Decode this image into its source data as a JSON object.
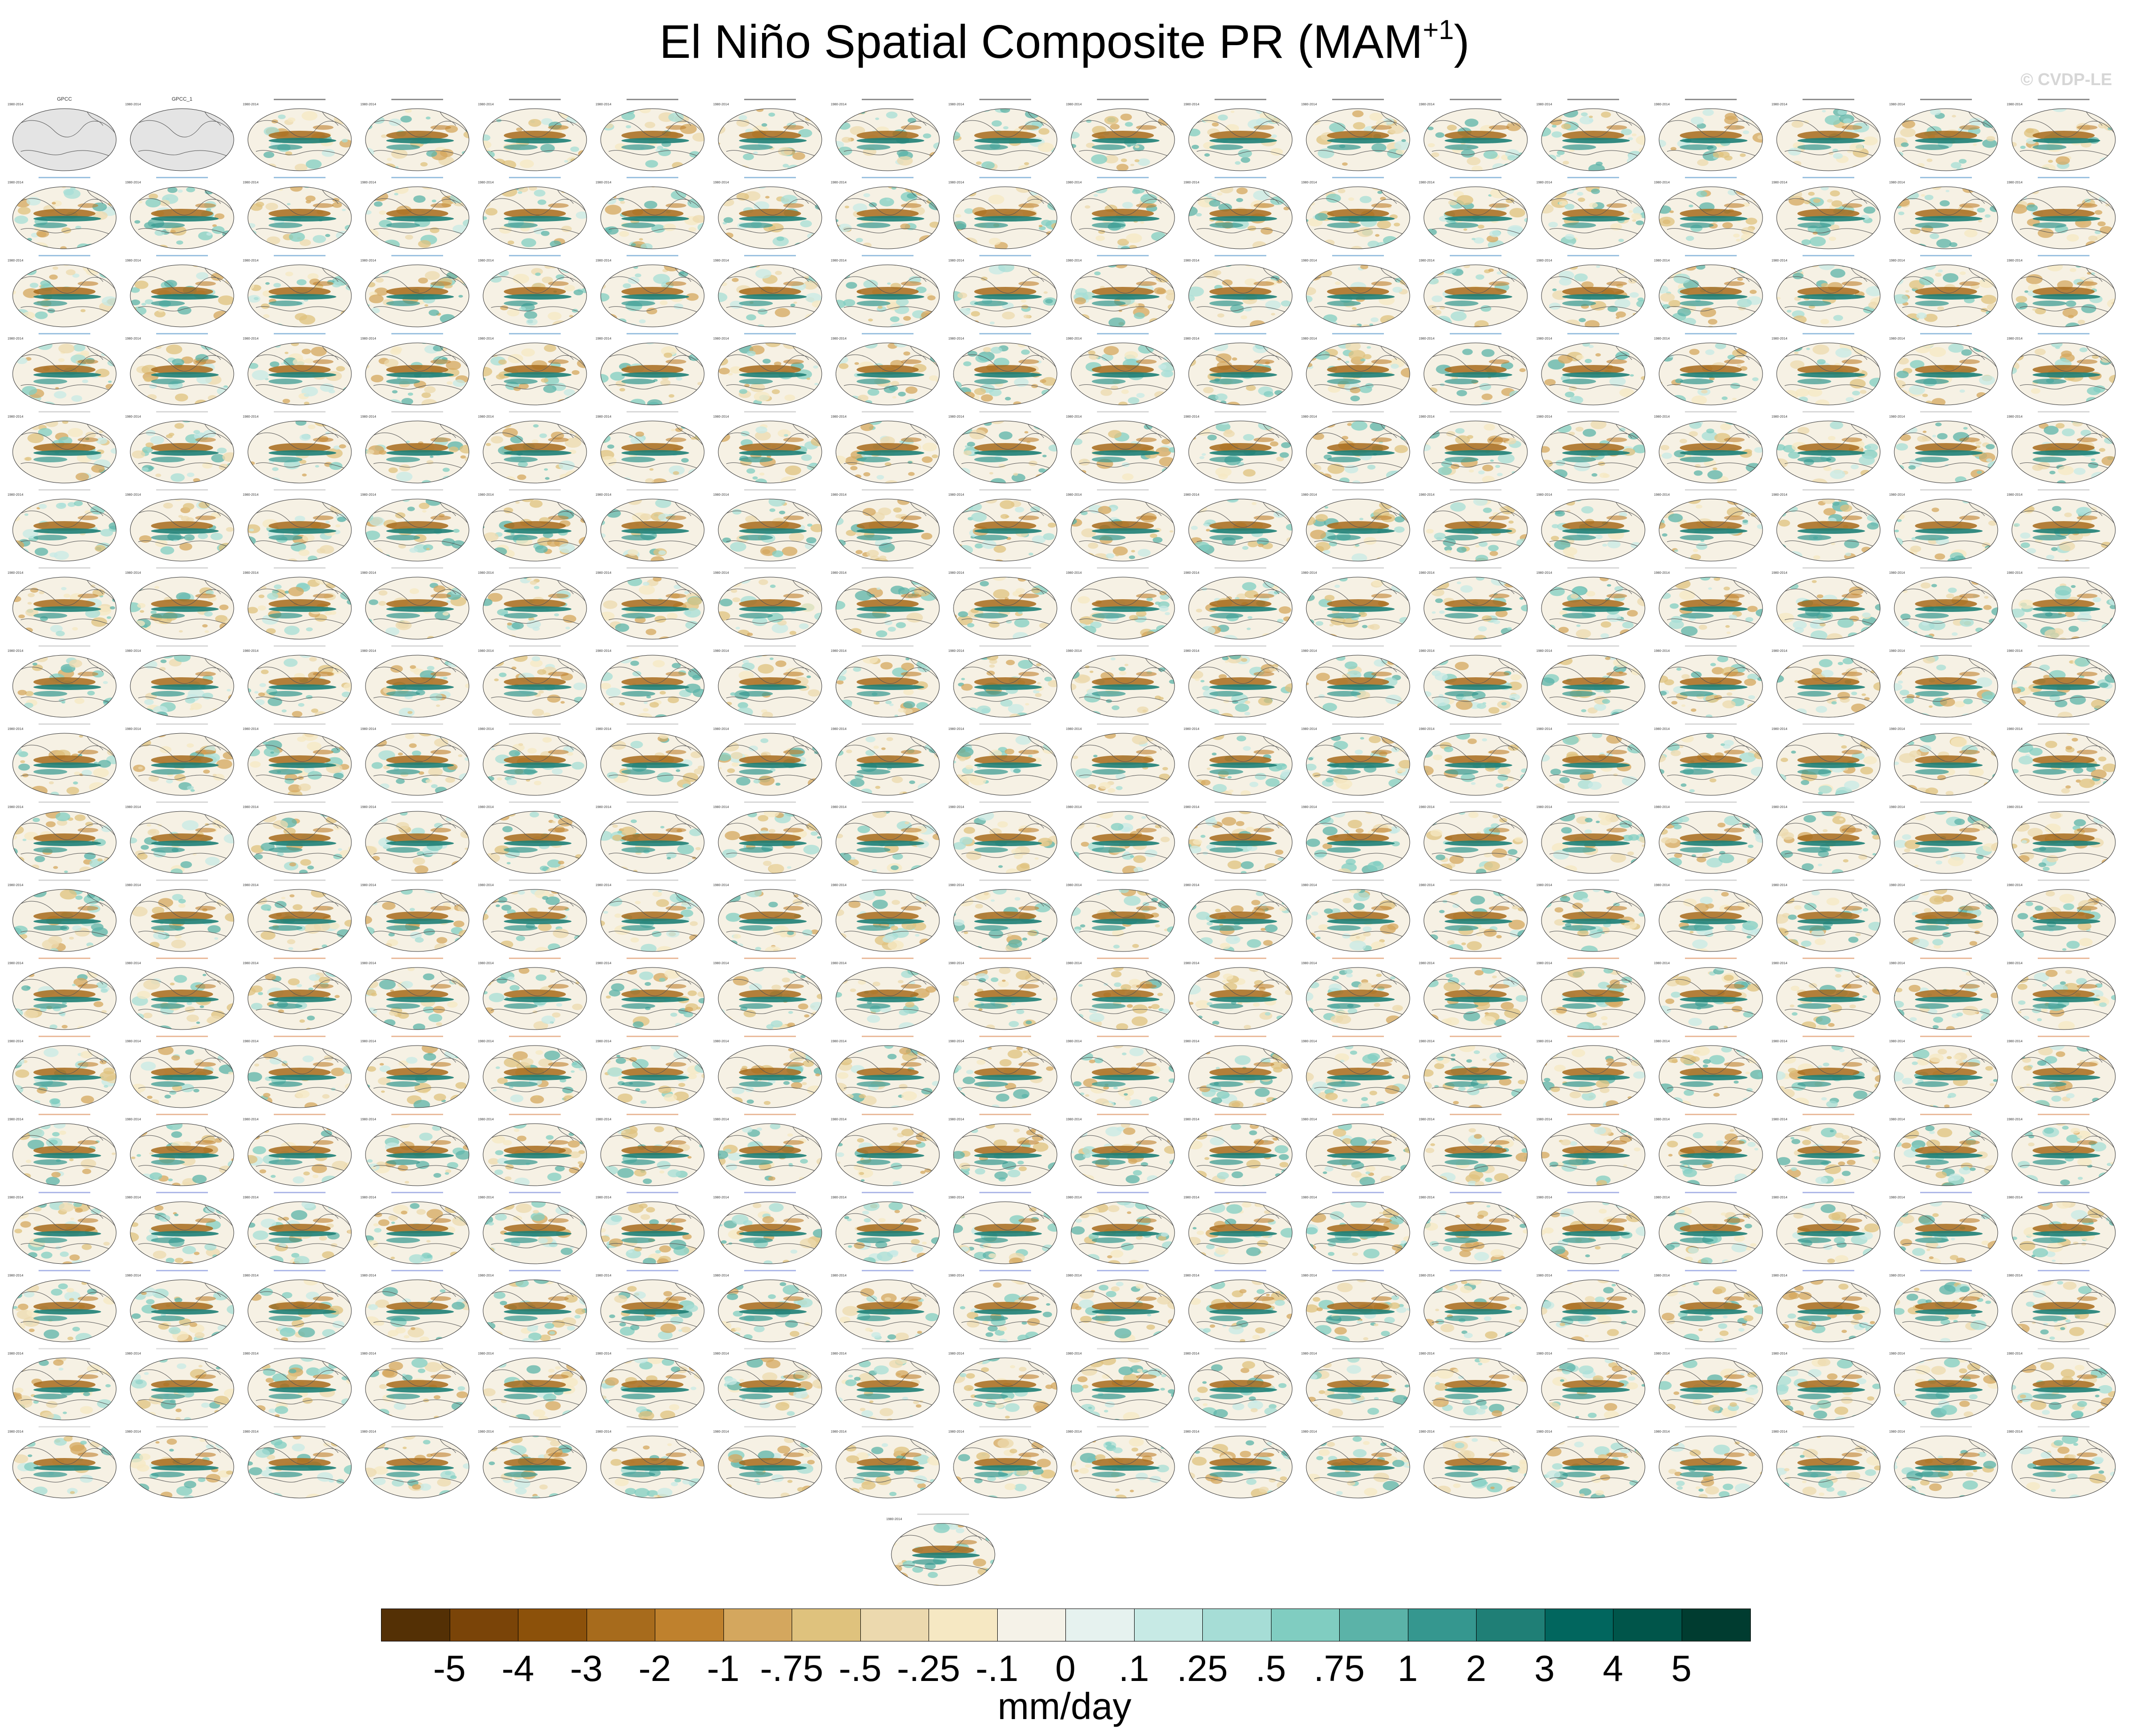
{
  "title": {
    "main": "El Niño Spatial Composite PR (MAM",
    "superscript": "+1",
    "close": ")"
  },
  "credit": "© CVDP-LE",
  "panels": {
    "rows": 18,
    "cols": 18,
    "extra_centered": 1,
    "period_label": "1980-2014",
    "row_title_colors": [
      "#333333",
      "#4a8fc6",
      "#4a8fc6",
      "#4a8fc6",
      "#b9b9b9",
      "#b9b9b9",
      "#b9b9b9",
      "#b9b9b9",
      "#b9b9b9",
      "#b9b9b9",
      "#b9b9b9",
      "#d9834a",
      "#d9834a",
      "#d9834a",
      "#6d7fd6",
      "#6d7fd6",
      "#c9c9c9",
      "#c9c9c9"
    ],
    "observations": [
      "GPCC",
      "GPCC_1"
    ]
  },
  "colorbar": {
    "colors": [
      "#543005",
      "#7a4408",
      "#8c510a",
      "#a76b1c",
      "#bf812d",
      "#d4a75e",
      "#dfc27d",
      "#ecd9ae",
      "#f6e8c3",
      "#f5f2e8",
      "#e6f2ef",
      "#c7eae5",
      "#a6ddd6",
      "#80cdc1",
      "#5bb3a8",
      "#35978f",
      "#1f7f76",
      "#01665e",
      "#00554a",
      "#003c30"
    ],
    "tick_labels": [
      "-5",
      "-4",
      "-3",
      "-2",
      "-1",
      "-.75",
      "-.5",
      "-.25",
      "-.1",
      "0",
      ".1",
      ".25",
      ".5",
      ".75",
      "1",
      "2",
      "3",
      "4",
      "5"
    ]
  },
  "units": "mm/day"
}
